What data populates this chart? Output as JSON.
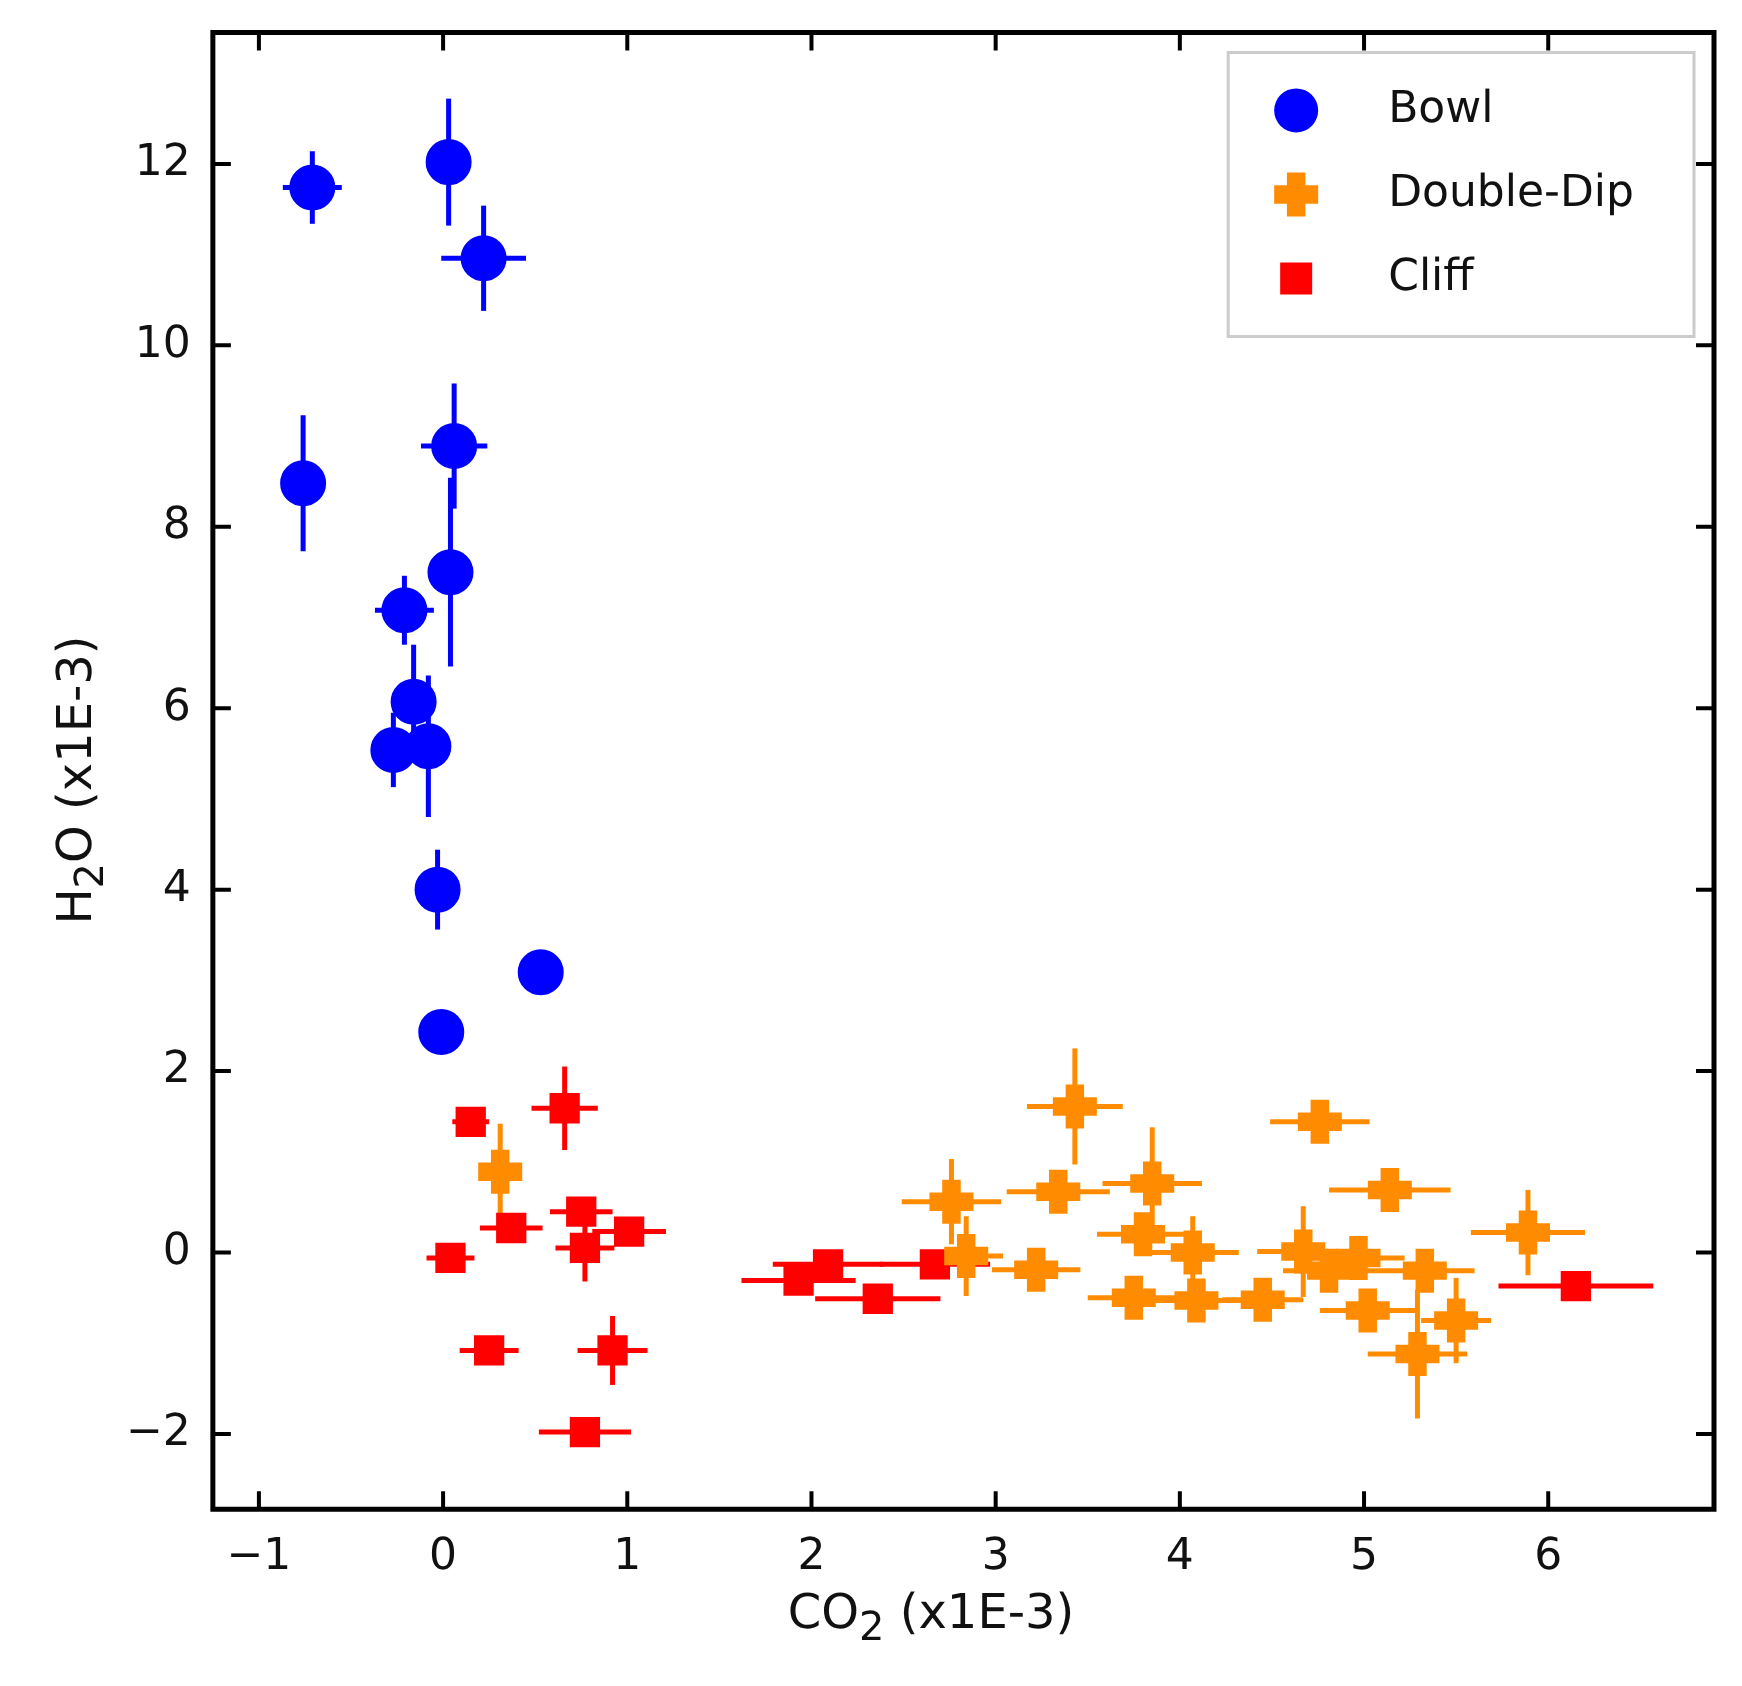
{
  "chart_data": {
    "type": "scatter",
    "xlabel": "CO$_{2}$ (x1E-3)",
    "ylabel": "H$_{2}$O (x1E-3)",
    "xlim": [
      -1.25,
      6.9
    ],
    "ylim": [
      -2.83,
      13.45
    ],
    "xticks": [
      {
        "value": -1,
        "label": "−1"
      },
      0,
      1,
      2,
      3,
      4,
      5,
      6
    ],
    "yticks": [
      {
        "value": -2,
        "label": "−2"
      },
      0,
      2,
      4,
      6,
      8,
      10,
      12
    ],
    "legend": "top right",
    "series": [
      {
        "name": "Bowl",
        "color": "#0000ff",
        "marker": "circle",
        "x": [
          -0.71,
          0.03,
          0.22,
          0.06,
          -0.76,
          0.04,
          -0.21,
          -0.16,
          -0.27,
          -0.08,
          -0.03,
          0.53,
          -0.01
        ],
        "values": [
          11.74,
          12.02,
          10.96,
          8.89,
          8.48,
          7.5,
          7.08,
          6.07,
          5.54,
          5.58,
          4.0,
          3.09,
          2.43
        ],
        "xerrors": [
          0.16,
          null,
          0.23,
          0.18,
          null,
          null,
          0.16,
          null,
          null,
          null,
          null,
          null,
          null
        ],
        "errors": [
          0.4,
          0.7,
          0.58,
          0.69,
          0.75,
          1.04,
          0.38,
          0.63,
          0.41,
          0.78,
          0.44,
          null,
          null
        ]
      },
      {
        "name": "Double-Dip",
        "color": "#ff8c00",
        "marker": "cross",
        "x": [
          0.31,
          3.43,
          2.76,
          3.34,
          3.85,
          2.84,
          3.22,
          3.8,
          4.07,
          3.75,
          4.09,
          4.76,
          5.14,
          5.89,
          4.67,
          4.81,
          4.97,
          5.33,
          4.45,
          5.02,
          5.5,
          5.29
        ],
        "values": [
          0.89,
          1.61,
          0.56,
          0.67,
          0.76,
          -0.04,
          -0.19,
          0.2,
          0.0,
          -0.5,
          -0.53,
          1.44,
          0.69,
          0.22,
          0.01,
          -0.2,
          -0.06,
          -0.2,
          -0.52,
          -0.64,
          -0.75,
          -1.12
        ],
        "xerrors": [
          null,
          0.26,
          0.27,
          0.28,
          0.27,
          0.2,
          0.24,
          0.25,
          0.25,
          0.25,
          0.25,
          0.27,
          0.33,
          0.31,
          0.25,
          0.25,
          0.25,
          0.27,
          0.22,
          0.26,
          0.19,
          0.27
        ],
        "errors": [
          0.53,
          0.64,
          0.47,
          null,
          0.62,
          0.44,
          null,
          null,
          0.4,
          null,
          null,
          null,
          null,
          0.47,
          0.5,
          null,
          null,
          null,
          null,
          null,
          0.47,
          0.71
        ]
      },
      {
        "name": "Cliff",
        "color": "#ff0000",
        "marker": "square",
        "x": [
          0.15,
          0.66,
          0.37,
          0.04,
          0.75,
          0.77,
          1.01,
          0.25,
          0.92,
          0.77,
          1.93,
          2.09,
          2.36,
          2.67,
          6.15
        ],
        "values": [
          1.44,
          1.59,
          0.27,
          -0.06,
          0.45,
          0.05,
          0.23,
          -1.08,
          -1.08,
          -1.98,
          -0.31,
          -0.13,
          -0.51,
          -0.13,
          -0.37
        ],
        "xerrors": [
          0.1,
          0.18,
          0.17,
          0.13,
          0.17,
          0.16,
          0.2,
          0.16,
          0.19,
          0.25,
          0.31,
          0.3,
          0.34,
          0.3,
          0.42
        ],
        "errors": [
          null,
          0.46,
          null,
          null,
          null,
          0.37,
          null,
          null,
          0.38,
          null,
          null,
          null,
          null,
          null,
          null
        ]
      }
    ]
  }
}
